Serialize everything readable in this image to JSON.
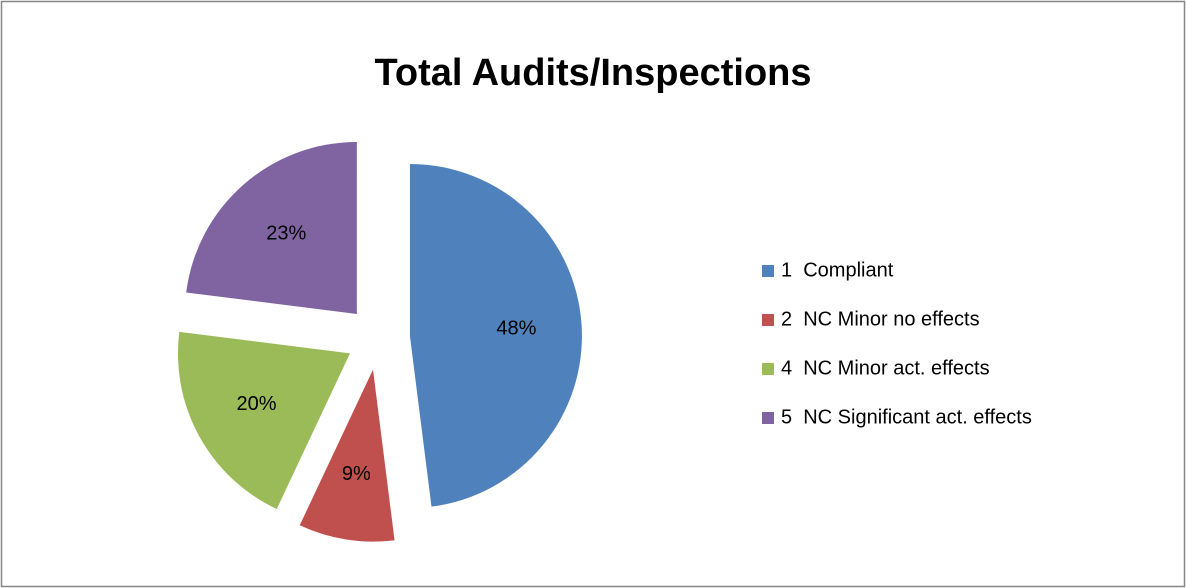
{
  "chart_data": {
    "type": "pie",
    "title": "Total Audits/Inspections",
    "categories": [
      "1  Compliant",
      "2  NC Minor no effects",
      "4  NC Minor act. effects",
      "5  NC Significant act. effects"
    ],
    "values": [
      48,
      9,
      20,
      23
    ],
    "value_labels": [
      "48%",
      "9%",
      "20%",
      "23%"
    ],
    "colors": [
      "#4f81bd",
      "#c0504d",
      "#9bbb59",
      "#8064a2"
    ],
    "legend": "right"
  }
}
